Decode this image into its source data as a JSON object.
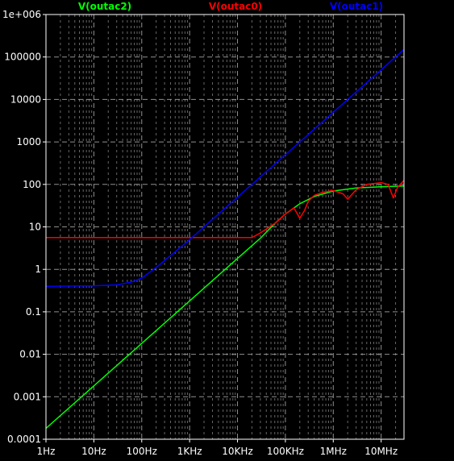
{
  "chart_data": {
    "type": "line",
    "xscale": "log",
    "yscale": "log",
    "xlim": [
      1,
      30000000
    ],
    "ylim": [
      0.0001,
      1000000
    ],
    "grid": true,
    "legend": "top",
    "background": "#000000",
    "axis_color": "#ffffff",
    "grid_color": "#aaaaaa",
    "xticks": [
      {
        "value": 1,
        "label": "1Hz"
      },
      {
        "value": 10,
        "label": "10Hz"
      },
      {
        "value": 100,
        "label": "100Hz"
      },
      {
        "value": 1000,
        "label": "1KHz"
      },
      {
        "value": 10000,
        "label": "10KHz"
      },
      {
        "value": 100000,
        "label": "100KHz"
      },
      {
        "value": 1000000,
        "label": "1MHz"
      },
      {
        "value": 10000000,
        "label": "10MHz"
      }
    ],
    "yticks": [
      {
        "value": 1000000,
        "label": "1e+006"
      },
      {
        "value": 100000,
        "label": "100000"
      },
      {
        "value": 10000,
        "label": "10000"
      },
      {
        "value": 1000,
        "label": "1000"
      },
      {
        "value": 100,
        "label": "100"
      },
      {
        "value": 10,
        "label": "10"
      },
      {
        "value": 1,
        "label": "1"
      },
      {
        "value": 0.1,
        "label": "0.1"
      },
      {
        "value": 0.01,
        "label": "0.01"
      },
      {
        "value": 0.001,
        "label": "0.001"
      },
      {
        "value": 0.0001,
        "label": "0.0001"
      }
    ],
    "series": [
      {
        "name": "V(outac2)",
        "color": "#00ff00",
        "points": [
          [
            1,
            0.00018
          ],
          [
            10,
            0.0018
          ],
          [
            100,
            0.018
          ],
          [
            1000,
            0.18
          ],
          [
            10000,
            1.8
          ],
          [
            30000,
            5.4
          ],
          [
            60000,
            12
          ],
          [
            100000,
            20
          ],
          [
            200000,
            35
          ],
          [
            400000,
            52
          ],
          [
            1000000,
            70
          ],
          [
            3000000,
            82
          ],
          [
            10000000,
            88
          ],
          [
            30000000,
            92
          ]
        ]
      },
      {
        "name": "V(outac0)",
        "color": "#ff0000",
        "points": [
          [
            1,
            5.6
          ],
          [
            1000,
            5.6
          ],
          [
            10000,
            5.6
          ],
          [
            20000,
            5.6
          ],
          [
            30000,
            7.2
          ],
          [
            60000,
            12
          ],
          [
            100000,
            20
          ],
          [
            150000,
            28
          ],
          [
            200000,
            16
          ],
          [
            250000,
            24
          ],
          [
            300000,
            40
          ],
          [
            400000,
            55
          ],
          [
            600000,
            65
          ],
          [
            1000000,
            72
          ],
          [
            1600000,
            60
          ],
          [
            2000000,
            45
          ],
          [
            3000000,
            75
          ],
          [
            5000000,
            100
          ],
          [
            10000000,
            110
          ],
          [
            14000000,
            100
          ],
          [
            18000000,
            48
          ],
          [
            22000000,
            85
          ],
          [
            30000000,
            125
          ]
        ]
      },
      {
        "name": "V(outac1)",
        "color": "#0000ff",
        "points": [
          [
            1,
            0.4
          ],
          [
            10,
            0.41
          ],
          [
            30,
            0.43
          ],
          [
            60,
            0.5
          ],
          [
            100,
            0.62
          ],
          [
            200,
            1.1
          ],
          [
            500,
            2.6
          ],
          [
            1000,
            5.0
          ],
          [
            2000,
            10
          ],
          [
            10000,
            50
          ],
          [
            100000,
            500
          ],
          [
            1000000,
            5000
          ],
          [
            10000000,
            50000
          ],
          [
            30000000,
            150000
          ]
        ]
      }
    ]
  }
}
